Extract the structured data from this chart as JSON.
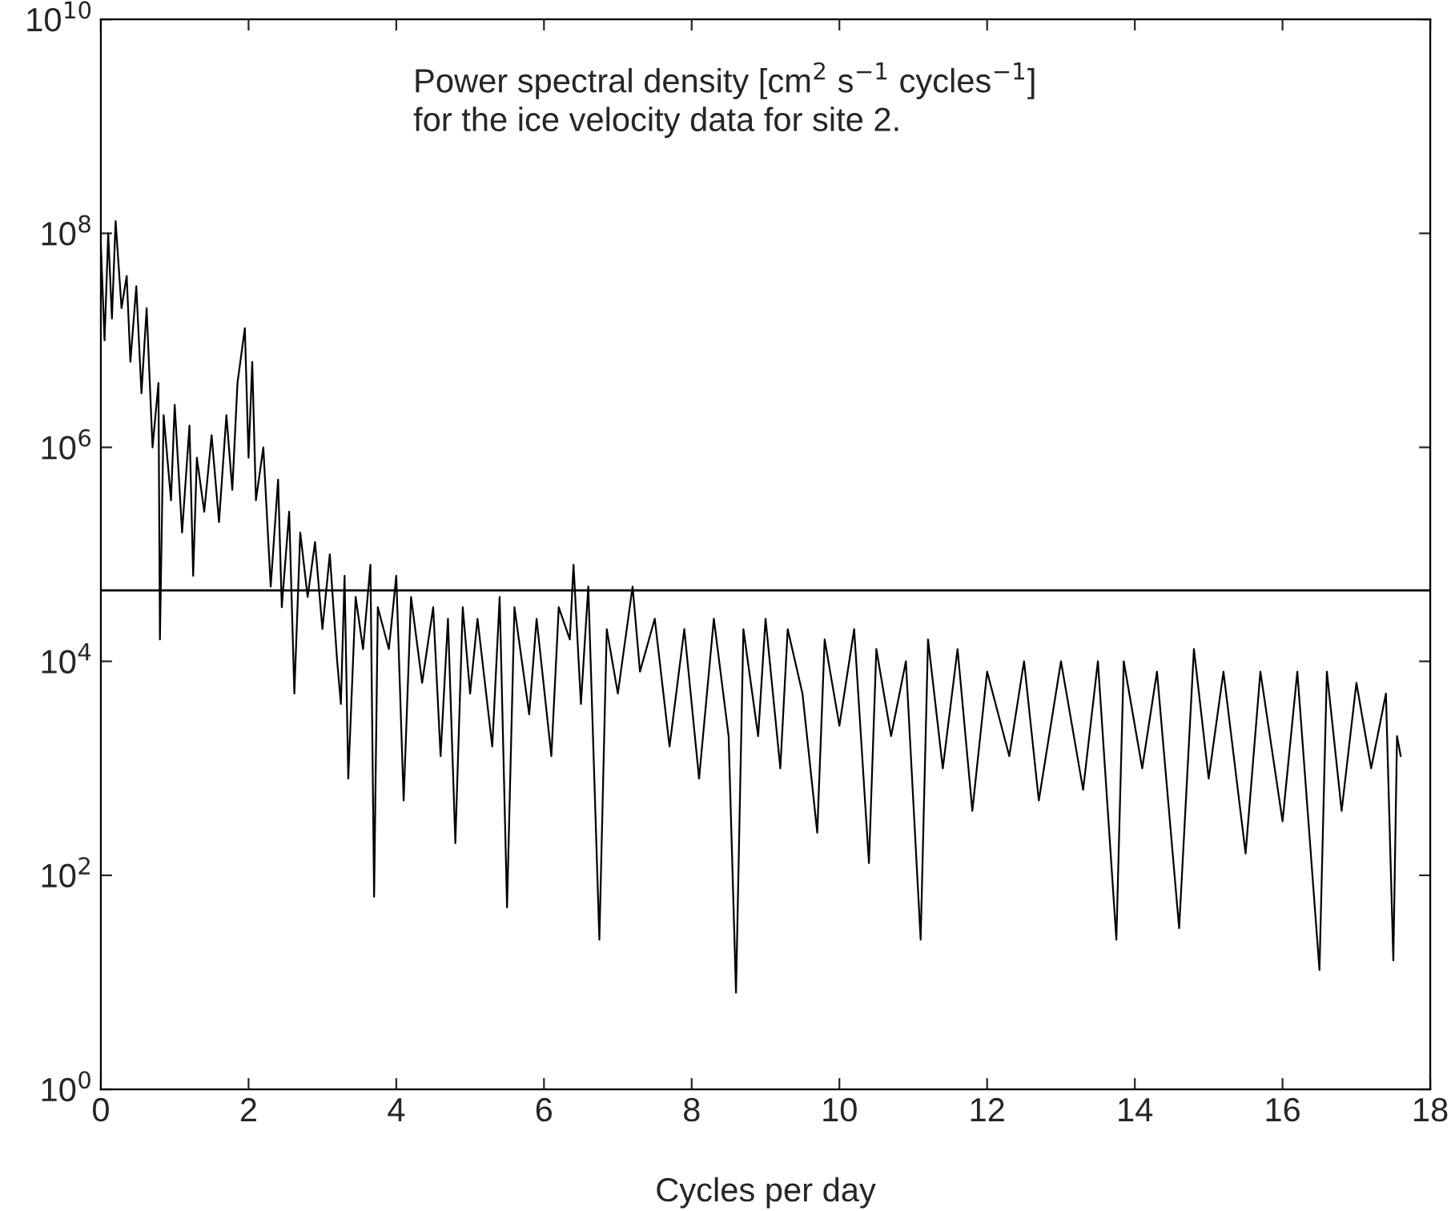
{
  "chart_data": {
    "type": "line",
    "xlabel": "Cycles per day",
    "annotations": [
      "Power spectral density [cm$^{2}$ s$^{−1}$ cycles$^{−1}$]\nfor the ice velocity data for site 2."
    ],
    "log": "y",
    "grid": false,
    "legend": false,
    "marker": "none",
    "line_style": "solid",
    "xlim": [
      0,
      18
    ],
    "xticks": [
      0,
      2,
      4,
      6,
      8,
      10,
      12,
      14,
      16,
      18
    ],
    "ylim": [
      1,
      10000000000
    ],
    "yticks": [
      {
        "value": 1,
        "label": "10$^{0}$"
      },
      {
        "value": 100,
        "label": "10$^{2}$"
      },
      {
        "value": 10000,
        "label": "10$^{4}$"
      },
      {
        "value": 1000000,
        "label": "10$^{6}$"
      },
      {
        "value": 100000000,
        "label": "10$^{8}$"
      },
      {
        "value": 10000000000,
        "label": "10$^{10}$"
      }
    ],
    "ref_lines": [
      {
        "axis": "y",
        "value": 46000,
        "label": null,
        "color": "#000000",
        "line_style": "solid"
      }
    ],
    "series": [
      {
        "color": "#000000",
        "x": [
          0.0,
          0.05,
          0.1,
          0.15,
          0.2,
          0.28,
          0.35,
          0.4,
          0.48,
          0.55,
          0.62,
          0.7,
          0.78,
          0.8,
          0.85,
          0.95,
          1.0,
          1.1,
          1.2,
          1.25,
          1.3,
          1.4,
          1.5,
          1.6,
          1.7,
          1.78,
          1.85,
          1.95,
          2.0,
          2.05,
          2.1,
          2.2,
          2.3,
          2.4,
          2.45,
          2.55,
          2.62,
          2.7,
          2.8,
          2.9,
          3.0,
          3.1,
          3.2,
          3.25,
          3.3,
          3.35,
          3.45,
          3.55,
          3.65,
          3.7,
          3.75,
          3.9,
          4.0,
          4.1,
          4.2,
          4.35,
          4.5,
          4.6,
          4.7,
          4.8,
          4.9,
          5.0,
          5.1,
          5.3,
          5.4,
          5.5,
          5.6,
          5.8,
          5.9,
          6.1,
          6.2,
          6.35,
          6.4,
          6.5,
          6.6,
          6.75,
          6.85,
          7.0,
          7.2,
          7.3,
          7.5,
          7.7,
          7.9,
          8.1,
          8.3,
          8.5,
          8.6,
          8.7,
          8.9,
          9.0,
          9.2,
          9.3,
          9.5,
          9.7,
          9.8,
          10.0,
          10.2,
          10.4,
          10.5,
          10.7,
          10.9,
          11.1,
          11.2,
          11.4,
          11.6,
          11.8,
          12.0,
          12.3,
          12.5,
          12.7,
          13.0,
          13.3,
          13.5,
          13.75,
          13.85,
          14.1,
          14.3,
          14.6,
          14.8,
          15.0,
          15.2,
          15.5,
          15.7,
          16.0,
          16.2,
          16.5,
          16.6,
          16.8,
          17.0,
          17.2,
          17.4,
          17.5,
          17.55,
          17.6
        ],
        "values": [
          80000000,
          10000000,
          100000000,
          16000000,
          130000000,
          20000000,
          40000000,
          6300000,
          32000000,
          3200000,
          20000000,
          1000000,
          4000000,
          16000,
          2000000,
          320000,
          2500000,
          160000,
          1600000,
          63000,
          800000,
          250000,
          1300000,
          200000,
          2000000,
          400000,
          4000000,
          13000000,
          800000,
          6300000,
          320000,
          1000000,
          50000,
          500000,
          32000,
          250000,
          5000,
          160000,
          40000,
          130000,
          20000,
          100000,
          10000,
          4000,
          63000,
          800,
          40000,
          13000,
          80000,
          63,
          32000,
          13000,
          63000,
          500,
          40000,
          6300,
          32000,
          1300,
          25000,
          200,
          32000,
          5000,
          25000,
          1600,
          40000,
          50,
          32000,
          3200,
          25000,
          1300,
          32000,
          16000,
          80000,
          4000,
          50000,
          25,
          20000,
          5000,
          50000,
          8000,
          25000,
          1600,
          20000,
          800,
          25000,
          2000,
          8,
          20000,
          2000,
          25000,
          1000,
          20000,
          5000,
          250,
          16000,
          2500,
          20000,
          130,
          13000,
          2000,
          10000,
          25,
          16000,
          1000,
          13000,
          400,
          8000,
          1300,
          10000,
          500,
          10000,
          630,
          10000,
          25,
          10000,
          1000,
          8000,
          32,
          13000,
          800,
          8000,
          160,
          8000,
          320,
          8000,
          13,
          8000,
          400,
          6300,
          1000,
          5000,
          16,
          2000,
          1300
        ]
      }
    ]
  }
}
